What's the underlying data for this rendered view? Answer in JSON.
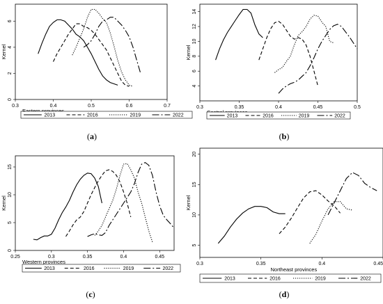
{
  "chart_data": [
    {
      "type": "line",
      "caption": "(a)",
      "xlabel": "Eastern provinces",
      "ylabel": "Kernel",
      "xlim": [
        0.3,
        0.7
      ],
      "ylim": [
        0,
        7.3
      ],
      "xticks": [
        0.3,
        0.4,
        0.5,
        0.6,
        0.7
      ],
      "xtick_labels": [
        "0.3",
        "0.4",
        "0.5",
        "0.6",
        "0.7"
      ],
      "yticks": [
        0,
        2,
        4,
        6
      ],
      "ytick_labels": [
        "0",
        "2",
        "4",
        "6"
      ],
      "legend": "below",
      "series": [
        {
          "name": "2013",
          "style": "solid",
          "x": [
            0.36,
            0.37,
            0.38,
            0.39,
            0.4,
            0.41,
            0.42,
            0.43,
            0.44,
            0.45,
            0.46,
            0.47,
            0.48,
            0.49,
            0.5,
            0.51,
            0.52,
            0.53,
            0.54,
            0.55,
            0.56,
            0.57
          ],
          "y": [
            3.5,
            4.3,
            5.0,
            5.6,
            5.9,
            6.1,
            6.1,
            6.0,
            5.7,
            5.4,
            5.0,
            4.8,
            4.5,
            4.0,
            3.5,
            2.9,
            2.3,
            1.8,
            1.5,
            1.3,
            1.2,
            1.1
          ]
        },
        {
          "name": "2016",
          "style": "dashed",
          "x": [
            0.4,
            0.41,
            0.42,
            0.43,
            0.44,
            0.45,
            0.46,
            0.47,
            0.48,
            0.49,
            0.5,
            0.51,
            0.52,
            0.53,
            0.54,
            0.55,
            0.56,
            0.57,
            0.58,
            0.59,
            0.6
          ],
          "y": [
            2.9,
            3.5,
            4.0,
            4.5,
            5.0,
            5.4,
            5.8,
            5.8,
            5.6,
            5.5,
            5.3,
            5.0,
            4.6,
            4.2,
            3.8,
            3.2,
            2.6,
            2.0,
            1.4,
            1.1,
            1.0
          ]
        },
        {
          "name": "2019",
          "style": "dotted",
          "x": [
            0.45,
            0.46,
            0.47,
            0.48,
            0.49,
            0.5,
            0.51,
            0.52,
            0.53,
            0.54,
            0.55,
            0.56,
            0.57,
            0.58,
            0.59,
            0.6,
            0.61
          ],
          "y": [
            3.4,
            4.0,
            4.7,
            5.4,
            6.3,
            6.9,
            6.9,
            6.6,
            6.2,
            5.9,
            5.1,
            4.1,
            3.0,
            2.1,
            1.5,
            1.1,
            1.0
          ]
        },
        {
          "name": "2022",
          "style": "longdash",
          "x": [
            0.48,
            0.49,
            0.5,
            0.51,
            0.52,
            0.53,
            0.54,
            0.55,
            0.56,
            0.57,
            0.58,
            0.59,
            0.6,
            0.61,
            0.62,
            0.63
          ],
          "y": [
            4.0,
            4.2,
            4.5,
            5.0,
            5.6,
            6.0,
            6.1,
            6.3,
            6.3,
            6.0,
            5.7,
            5.3,
            4.8,
            4.0,
            3.0,
            2.0
          ]
        }
      ]
    },
    {
      "type": "line",
      "caption": "(b)",
      "xlabel": "Central provinces",
      "ylabel": "Kernel",
      "xlim": [
        0.3,
        0.5
      ],
      "ylim": [
        2,
        15
      ],
      "xticks": [
        0.3,
        0.35,
        0.4,
        0.45,
        0.5
      ],
      "xtick_labels": [
        "0.3",
        "0.35",
        "0.4",
        "0.45",
        "0.5"
      ],
      "yticks": [
        4,
        6,
        8,
        10,
        12,
        14
      ],
      "ytick_labels": [
        "4",
        "6",
        "8",
        "10",
        "12",
        "14"
      ],
      "legend": "below",
      "series": [
        {
          "name": "2013",
          "style": "solid",
          "x": [
            0.32,
            0.325,
            0.33,
            0.335,
            0.34,
            0.345,
            0.35,
            0.355,
            0.36,
            0.365,
            0.37,
            0.375,
            0.38
          ],
          "y": [
            7.5,
            9.0,
            10.2,
            11.2,
            12.0,
            12.8,
            13.6,
            14.3,
            14.3,
            13.8,
            12.2,
            11.0,
            10.5
          ]
        },
        {
          "name": "2016",
          "style": "dashed",
          "x": [
            0.375,
            0.38,
            0.385,
            0.39,
            0.395,
            0.4,
            0.405,
            0.41,
            0.415,
            0.42,
            0.425,
            0.43,
            0.435,
            0.44,
            0.445,
            0.45
          ],
          "y": [
            7.5,
            9.0,
            10.5,
            11.7,
            12.5,
            12.7,
            12.3,
            11.5,
            10.7,
            10.3,
            10.5,
            10.3,
            9.5,
            8.0,
            6.0,
            4.0
          ]
        },
        {
          "name": "2019",
          "style": "dotted",
          "x": [
            0.395,
            0.4,
            0.405,
            0.41,
            0.415,
            0.42,
            0.425,
            0.43,
            0.435,
            0.44,
            0.445,
            0.45,
            0.455,
            0.46,
            0.465,
            0.47
          ],
          "y": [
            5.8,
            6.2,
            6.5,
            7.3,
            8.0,
            9.5,
            10.8,
            11.3,
            12.0,
            13.0,
            13.5,
            13.4,
            12.6,
            12.0,
            10.0,
            9.8
          ]
        },
        {
          "name": "2022",
          "style": "longdash",
          "x": [
            0.4,
            0.405,
            0.41,
            0.415,
            0.42,
            0.425,
            0.43,
            0.435,
            0.44,
            0.445,
            0.45,
            0.455,
            0.46,
            0.465,
            0.47,
            0.475,
            0.48,
            0.485,
            0.49,
            0.495,
            0.5
          ],
          "y": [
            3.0,
            3.6,
            4.0,
            4.3,
            4.5,
            4.8,
            5.3,
            5.8,
            6.7,
            7.8,
            9.0,
            10.0,
            10.8,
            11.6,
            12.1,
            12.3,
            12.0,
            11.3,
            10.6,
            9.8,
            9.0
          ]
        }
      ]
    },
    {
      "type": "line",
      "caption": "(c)",
      "xlabel": "Western provinces",
      "ylabel": "Kernel",
      "xlim": [
        0.25,
        0.47
      ],
      "ylim": [
        0,
        17
      ],
      "xticks": [
        0.25,
        0.3,
        0.35,
        0.4,
        0.45
      ],
      "xtick_labels": [
        "0.25",
        "0.3",
        "0.35",
        "0.4",
        "0.45"
      ],
      "yticks": [
        0,
        5,
        10,
        15
      ],
      "ytick_labels": [
        "0",
        "5",
        "10",
        "15"
      ],
      "legend": "below",
      "series": [
        {
          "name": "2013",
          "style": "solid",
          "x": [
            0.275,
            0.28,
            0.285,
            0.29,
            0.295,
            0.3,
            0.305,
            0.31,
            0.315,
            0.32,
            0.325,
            0.33,
            0.335,
            0.34,
            0.345,
            0.35,
            0.355,
            0.36,
            0.365,
            0.37
          ],
          "y": [
            2.0,
            1.9,
            2.3,
            2.6,
            2.6,
            2.9,
            4.0,
            5.5,
            6.8,
            7.8,
            9.0,
            10.5,
            11.8,
            12.8,
            13.5,
            13.9,
            13.8,
            13.0,
            11.5,
            8.5
          ]
        },
        {
          "name": "2016",
          "style": "dashed",
          "x": [
            0.32,
            0.325,
            0.33,
            0.335,
            0.34,
            0.345,
            0.35,
            0.355,
            0.36,
            0.365,
            0.37,
            0.375,
            0.38,
            0.385,
            0.39,
            0.395,
            0.4,
            0.405,
            0.41
          ],
          "y": [
            2.5,
            3.5,
            4.6,
            5.5,
            6.0,
            7.0,
            8.5,
            10.0,
            11.3,
            12.5,
            13.5,
            14.3,
            14.5,
            14.2,
            13.5,
            12.3,
            10.5,
            8.5,
            6.0
          ]
        },
        {
          "name": "2019",
          "style": "dotted",
          "x": [
            0.36,
            0.365,
            0.37,
            0.375,
            0.38,
            0.385,
            0.39,
            0.395,
            0.4,
            0.405,
            0.41,
            0.415,
            0.42,
            0.425,
            0.43,
            0.435,
            0.44
          ],
          "y": [
            2.7,
            3.5,
            4.5,
            6.0,
            7.5,
            9.0,
            11.0,
            13.5,
            15.5,
            15.6,
            14.5,
            13.0,
            10.5,
            8.5,
            6.0,
            3.5,
            1.5
          ]
        },
        {
          "name": "2022",
          "style": "longdash",
          "x": [
            0.35,
            0.355,
            0.36,
            0.365,
            0.37,
            0.375,
            0.38,
            0.385,
            0.39,
            0.395,
            0.4,
            0.405,
            0.41,
            0.415,
            0.42,
            0.425,
            0.43,
            0.435,
            0.44,
            0.445,
            0.45,
            0.455,
            0.46,
            0.465,
            0.47
          ],
          "y": [
            2.5,
            2.8,
            3.0,
            2.8,
            2.7,
            3.2,
            4.5,
            5.5,
            6.5,
            7.5,
            8.5,
            9.5,
            10.5,
            12.0,
            14.0,
            15.5,
            15.8,
            15.3,
            13.5,
            10.5,
            8.0,
            6.3,
            5.5,
            4.8,
            4.0
          ]
        }
      ]
    },
    {
      "type": "line",
      "caption": "(d)",
      "xlabel": "Northeast provinces",
      "ylabel": "Kernel",
      "xlim": [
        0.3,
        0.45
      ],
      "ylim": [
        3,
        21
      ],
      "xticks": [
        0.3,
        0.35,
        0.4,
        0.45
      ],
      "xtick_labels": [
        "0.3",
        "0.35",
        "0.4",
        "0.45"
      ],
      "yticks": [
        5,
        10,
        15,
        20
      ],
      "ytick_labels": [
        "5",
        "10",
        "15",
        "20"
      ],
      "legend": "below",
      "series": [
        {
          "name": "2013",
          "style": "solid",
          "x": [
            0.315,
            0.32,
            0.325,
            0.33,
            0.335,
            0.34,
            0.345,
            0.35,
            0.355,
            0.36,
            0.365,
            0.37
          ],
          "y": [
            5.3,
            6.5,
            8.0,
            9.3,
            10.3,
            11.0,
            11.4,
            11.4,
            11.2,
            10.5,
            10.2,
            10.2
          ]
        },
        {
          "name": "2016",
          "style": "dashed",
          "x": [
            0.365,
            0.37,
            0.375,
            0.38,
            0.385,
            0.39,
            0.395,
            0.4,
            0.405,
            0.41,
            0.415
          ],
          "y": [
            6.9,
            8.0,
            9.5,
            11.2,
            12.8,
            13.8,
            14.0,
            13.3,
            12.3,
            11.5,
            10.3
          ]
        },
        {
          "name": "2019",
          "style": "dotted",
          "x": [
            0.39,
            0.395,
            0.4,
            0.405,
            0.41,
            0.415,
            0.42,
            0.425
          ],
          "y": [
            5.3,
            6.8,
            9.0,
            11.0,
            12.2,
            12.2,
            11.0,
            10.8
          ]
        },
        {
          "name": "2022",
          "style": "longdash",
          "x": [
            0.405,
            0.41,
            0.415,
            0.42,
            0.425,
            0.43,
            0.435,
            0.44,
            0.445
          ],
          "y": [
            10.0,
            12.0,
            14.0,
            16.0,
            17.0,
            16.5,
            15.2,
            14.5,
            14.0
          ]
        }
      ]
    }
  ]
}
